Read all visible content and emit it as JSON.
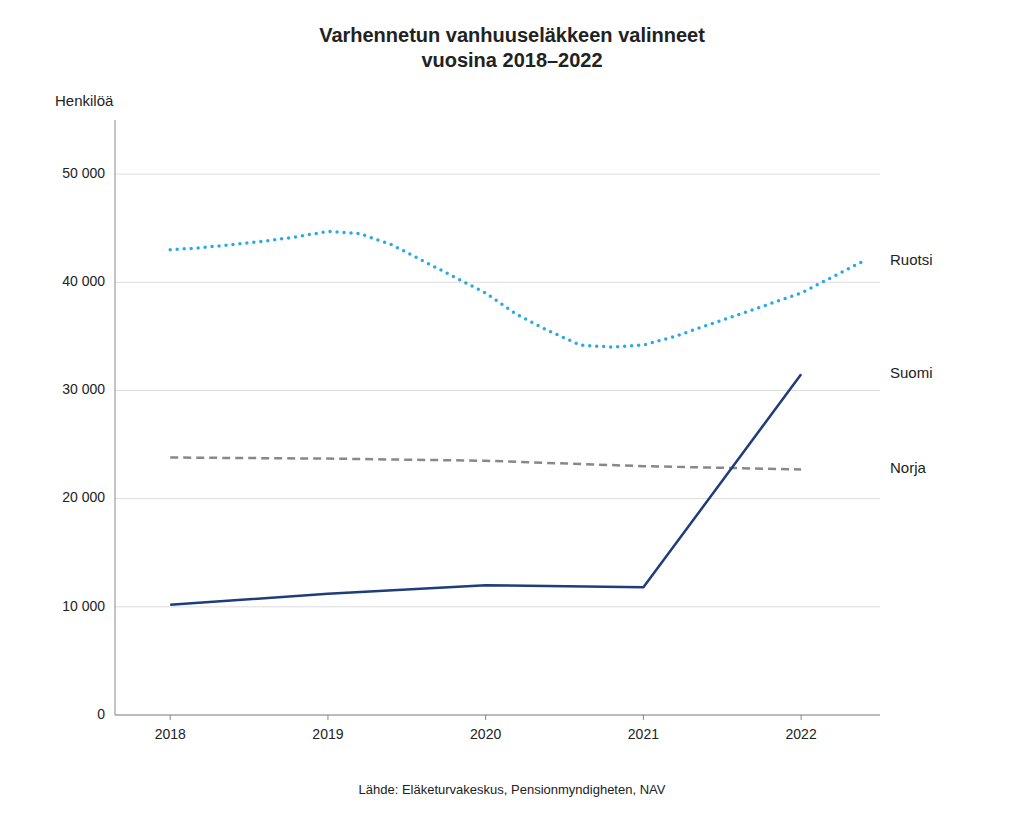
{
  "chart_data": {
    "type": "line",
    "title": "Varhennetun vanhuuseläkkeen valinneet\nvuosina 2018–2022",
    "ylabel": "Henkilöä",
    "source": "Lähde: Eläketurvakeskus, Pensionmyndigheten, NAV",
    "series": [
      {
        "name": "Ruotsi",
        "color": "#29ABE2",
        "line_style": "dotted",
        "x": [
          2018,
          2018.2,
          2018.4,
          2018.6,
          2018.8,
          2019.0,
          2019.2,
          2019.4,
          2019.6,
          2019.8,
          2020.0,
          2020.2,
          2020.4,
          2020.6,
          2020.8,
          2021.0,
          2021.2,
          2021.4,
          2021.6,
          2021.8,
          2022.0,
          2022.2,
          2022.4
        ],
        "values": [
          43000,
          43200,
          43500,
          43800,
          44200,
          44700,
          44500,
          43500,
          42000,
          40500,
          39000,
          37000,
          35500,
          34200,
          34000,
          34200,
          35000,
          36000,
          37000,
          38000,
          39000,
          40500,
          42000
        ]
      },
      {
        "name": "Norja",
        "color": "#888888",
        "line_style": "dashed",
        "x": [
          2018,
          2019,
          2020,
          2021,
          2022
        ],
        "values": [
          23800,
          23700,
          23500,
          23000,
          22700
        ]
      },
      {
        "name": "Suomi",
        "color": "#1F3D7A",
        "line_style": "solid",
        "x": [
          2018,
          2019,
          2020,
          2021,
          2022
        ],
        "values": [
          10200,
          11200,
          12000,
          11800,
          31500
        ]
      }
    ],
    "xlim": [
      2017.65,
      2022.5
    ],
    "xticks": [
      2018,
      2019,
      2020,
      2021,
      2022
    ],
    "ylim": [
      0,
      55000
    ],
    "yticks": [
      0,
      {
        "value": 10000,
        "label": "10 000"
      },
      {
        "value": 20000,
        "label": "20 000"
      },
      {
        "value": 30000,
        "label": "30 000"
      },
      {
        "value": 40000,
        "label": "40 000"
      },
      {
        "value": 50000,
        "label": "50 000"
      }
    ],
    "grid": true
  }
}
